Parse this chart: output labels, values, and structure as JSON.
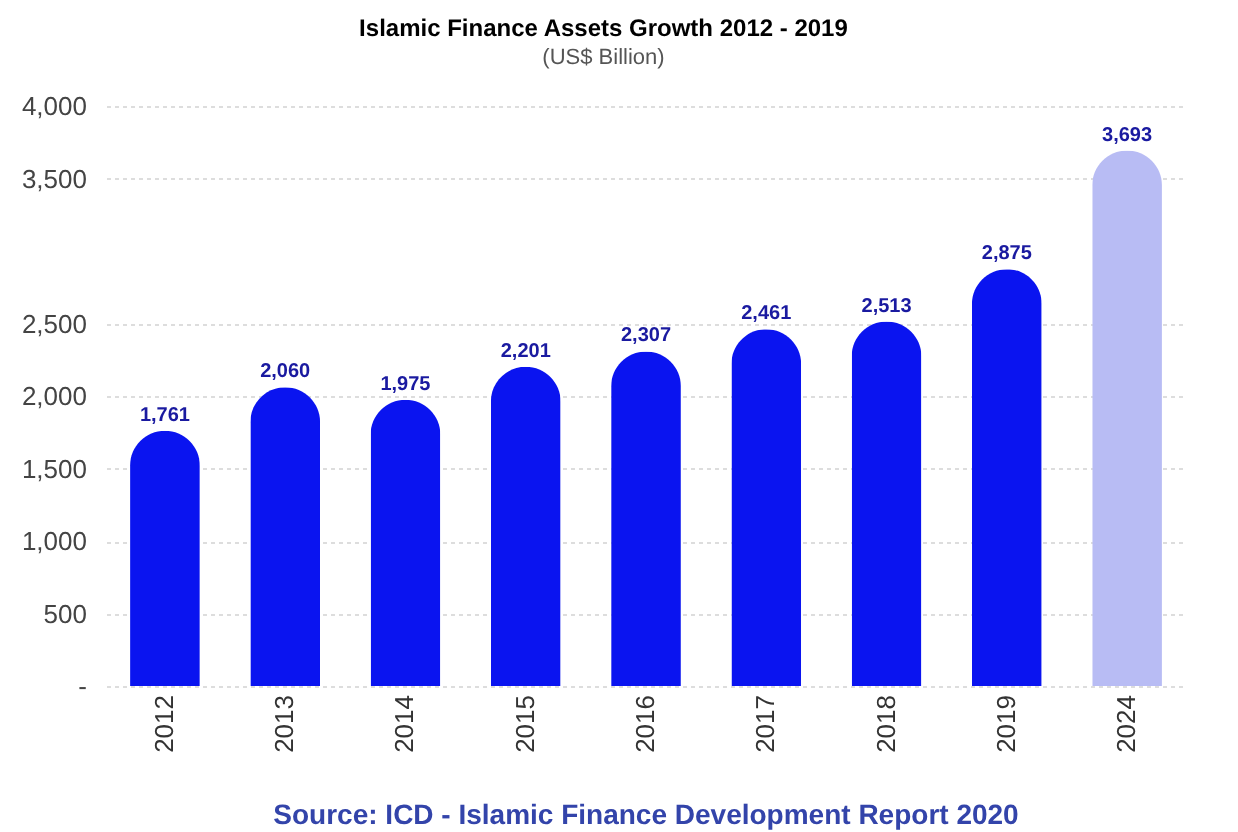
{
  "chart_data": {
    "type": "bar",
    "title": "Islamic Finance Assets Growth 2012 - 2019",
    "subtitle": "(US$ Billion)",
    "categories": [
      "2012",
      "2013",
      "2014",
      "2015",
      "2016",
      "2017",
      "2018",
      "2019",
      "2024"
    ],
    "values": [
      1761,
      2060,
      1975,
      2201,
      2307,
      2461,
      2513,
      2875,
      3693
    ],
    "colors": [
      "#0a14f0",
      "#0a14f0",
      "#0a14f0",
      "#0a14f0",
      "#0a14f0",
      "#0a14f0",
      "#0a14f0",
      "#0a14f0",
      "#b8bcf4"
    ],
    "value_labels": [
      "1,761",
      "2,060",
      "1,975",
      "2,201",
      "2,307",
      "2,461",
      "2,513",
      "2,875",
      "3,693"
    ],
    "ylim": [
      0,
      4000
    ],
    "yticks": [
      {
        "value": 0,
        "label": "-"
      },
      500,
      {
        "value": 1000,
        "label": "1,000"
      },
      {
        "value": 1500,
        "label": "1,500"
      },
      {
        "value": 2000,
        "label": "2,000"
      },
      {
        "value": 2500,
        "label": "2,500"
      },
      {
        "value": 3500,
        "label": "3,500"
      },
      {
        "value": 4000,
        "label": "4,000"
      }
    ],
    "grid": "y",
    "annotations": [
      "Source: ICD - Islamic Finance Development Report 2020"
    ]
  }
}
